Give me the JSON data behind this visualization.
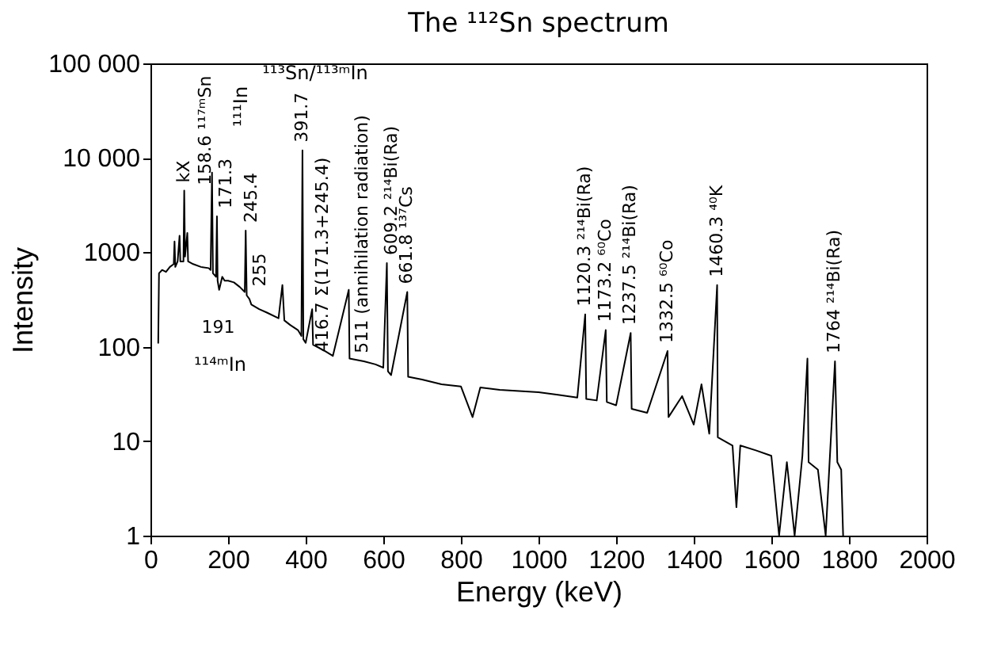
{
  "chart_data": {
    "type": "line",
    "title": "The ¹¹²Sn spectrum",
    "xlabel": "Energy  (keV)",
    "ylabel": "Intensity",
    "log": "y",
    "xlim": [
      0,
      2000
    ],
    "xticks": [
      0,
      200,
      400,
      600,
      800,
      1000,
      1200,
      1400,
      1600,
      1800,
      2000
    ],
    "ylim": [
      1,
      100000
    ],
    "yticks": [
      1,
      10,
      100,
      1000,
      {
        "value": 10000,
        "label": "10 000"
      },
      {
        "value": 100000,
        "label": "100 000"
      }
    ],
    "series": [
      {
        "color": "#000000",
        "x": [
          20,
          22,
          30,
          40,
          50,
          60,
          62,
          64,
          70,
          75,
          77,
          85,
          87,
          89,
          95,
          97,
          110,
          130,
          150,
          155,
          158.6,
          161,
          169,
          171.3,
          173,
          177,
          185,
          191,
          200,
          215,
          230,
          243,
          245.4,
          248,
          255,
          260,
          280,
          300,
          330,
          340,
          345,
          360,
          380,
          389,
          391.7,
          394,
          400,
          416.7,
          419,
          450,
          470,
          511,
          513,
          550,
          580,
          600,
          609.2,
          612,
          620,
          661.8,
          664,
          700,
          750,
          800,
          830,
          850,
          900,
          950,
          1000,
          1050,
          1100,
          1120.3,
          1123,
          1150,
          1173.2,
          1176,
          1200,
          1237.5,
          1240,
          1280,
          1332.5,
          1335,
          1370,
          1400,
          1420,
          1440,
          1460.3,
          1462,
          1500,
          1510,
          1520,
          1560,
          1600,
          1620,
          1640,
          1660,
          1680,
          1693,
          1696,
          1720,
          1740,
          1764,
          1770,
          1780,
          1785
        ],
        "values": [
          110,
          600,
          650,
          620,
          700,
          750,
          1300,
          700,
          800,
          1500,
          800,
          800,
          4500,
          900,
          1600,
          800,
          750,
          700,
          680,
          650,
          7000,
          600,
          550,
          2400,
          500,
          400,
          550,
          500,
          500,
          480,
          430,
          380,
          1700,
          350,
          320,
          280,
          250,
          230,
          200,
          450,
          190,
          170,
          150,
          130,
          12000,
          120,
          110,
          250,
          105,
          90,
          80,
          400,
          75,
          70,
          65,
          60,
          770,
          55,
          50,
          380,
          48,
          45,
          40,
          38,
          18,
          37,
          35,
          34,
          33,
          31,
          29,
          220,
          28,
          27,
          150,
          26,
          24,
          140,
          22,
          20,
          90,
          18,
          30,
          15,
          40,
          12,
          450,
          11,
          9,
          2,
          9,
          8,
          7,
          1,
          6,
          1,
          7,
          75,
          6,
          5,
          1,
          70,
          6,
          5,
          1
        ]
      }
    ],
    "annotations": [
      {
        "text": "kX",
        "x": 87,
        "y": 4500
      },
      {
        "text": "158.6 ¹¹⁷ᵐSn",
        "x": 158.6,
        "y": 7000
      },
      {
        "text": "171.3",
        "x": 171.3,
        "y": 2400
      },
      "¹¹¹In",
      {
        "text": "245.4",
        "x": 245.4,
        "y": 1700
      },
      {
        "text": "255",
        "x": 255,
        "y": 320
      },
      "¹¹³Sn/¹¹³ᵐIn",
      {
        "text": "391.7",
        "x": 391.7,
        "y": 12000
      },
      {
        "text": "416.7 Σ(171.3+245.4)",
        "x": 416.7,
        "y": 250
      },
      {
        "text": "511 (annihilation radiation)",
        "x": 511,
        "y": 400
      },
      {
        "text": "609.2 ²¹⁴Bi(Ra)",
        "x": 609.2,
        "y": 770
      },
      {
        "text": "661.8 ¹³⁷Cs",
        "x": 661.8,
        "y": 380
      },
      {
        "text": "1120.3 ²¹⁴Bi(Ra)",
        "x": 1120.3,
        "y": 220
      },
      {
        "text": "1173.2 ⁶⁰Co",
        "x": 1173.2,
        "y": 150
      },
      {
        "text": "1237.5 ²¹⁴Bi(Ra)",
        "x": 1237.5,
        "y": 140
      },
      {
        "text": "1332.5 ⁶⁰Co",
        "x": 1332.5,
        "y": 90
      },
      {
        "text": "1460.3 ⁴⁰K",
        "x": 1460.3,
        "y": 450
      },
      {
        "text": "1764 ²¹⁴Bi(Ra)",
        "x": 1764,
        "y": 70
      },
      {
        "text": "191",
        "x": 191,
        "y": 500
      },
      "¹¹⁴ᵐIn"
    ]
  }
}
